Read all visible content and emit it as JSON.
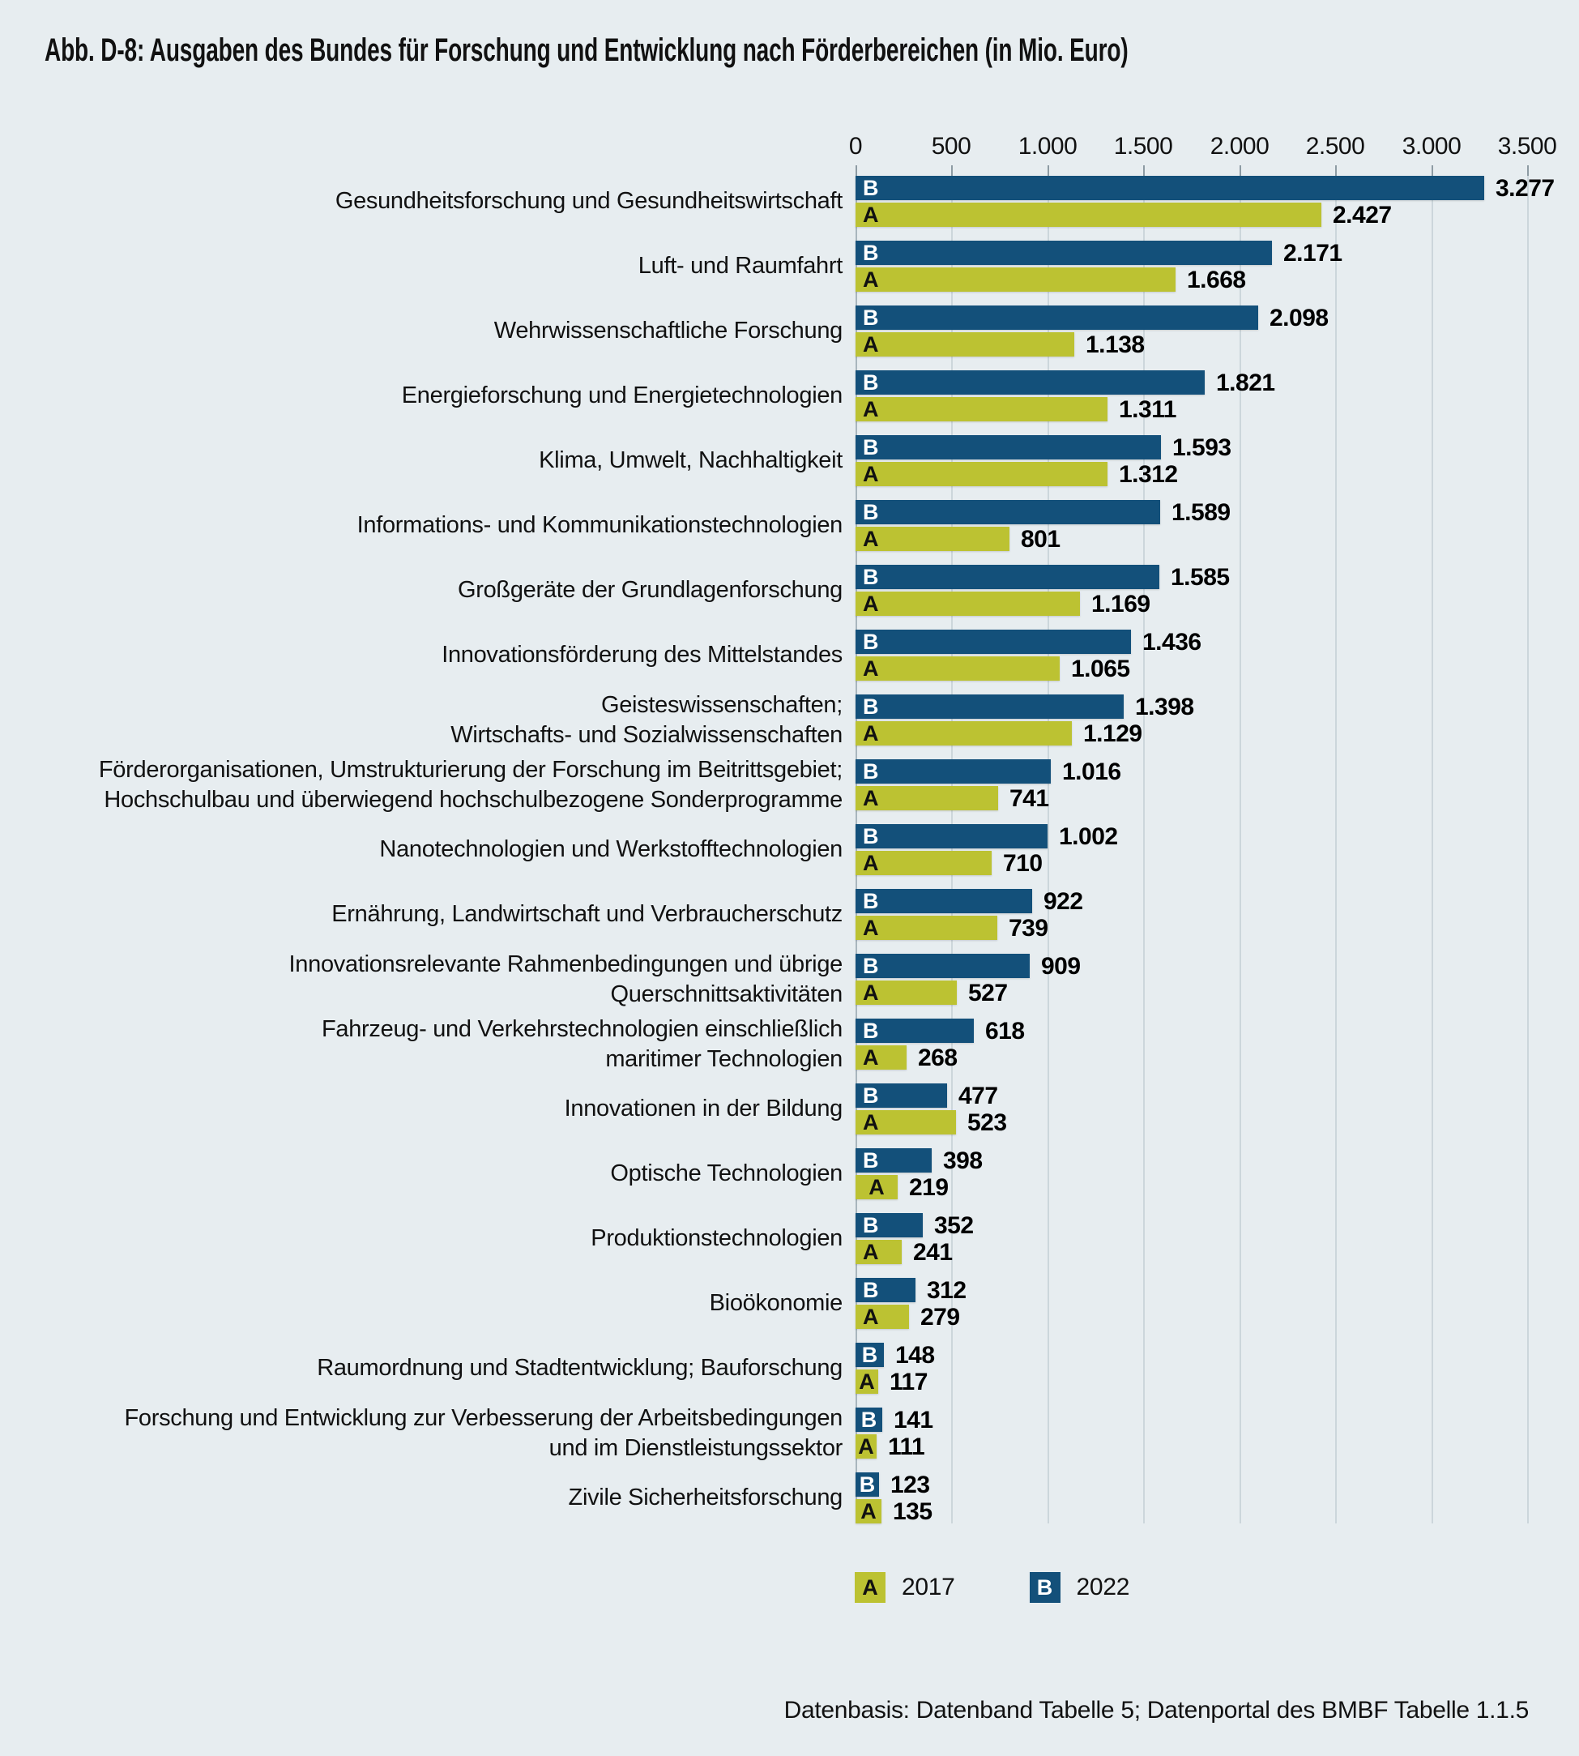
{
  "title": "Abb. D-8: Ausgaben des Bundes für Forschung und Entwicklung nach Förderbereichen (in Mio. Euro)",
  "source_note": "Datenbasis: Datenband Tabelle 5; Datenportal des BMBF Tabelle 1.1.5",
  "colors": {
    "background": "#e7edf0",
    "grid": "#ccd6db",
    "axis_line": "#a9b6bd",
    "series_2022_blue": "#13507a",
    "series_2017_green": "#bcc232",
    "text": "#111111"
  },
  "chart_data": {
    "type": "bar",
    "orientation": "horizontal",
    "unit": "Mio. Euro",
    "grid": true,
    "x_axis": {
      "min": 0,
      "max": 3500,
      "tick_values": [
        0,
        500,
        1000,
        1500,
        2000,
        2500,
        3000,
        3500
      ],
      "tick_labels": [
        "0",
        "500",
        "1.000",
        "1.500",
        "2.000",
        "2.500",
        "3.000",
        "3.500"
      ]
    },
    "legend": {
      "position": "bottom",
      "items": [
        {
          "key": "A",
          "label": "2017",
          "color": "#bcc232",
          "letter_color": "#111111"
        },
        {
          "key": "B",
          "label": "2022",
          "color": "#13507a",
          "letter_color": "#ffffff"
        }
      ]
    },
    "categories": [
      [
        "Gesundheitsforschung und Gesundheitswirtschaft"
      ],
      [
        "Luft- und Raumfahrt"
      ],
      [
        "Wehrwissenschaftliche Forschung"
      ],
      [
        "Energieforschung und Energietechnologien"
      ],
      [
        "Klima, Umwelt, Nachhaltigkeit"
      ],
      [
        "Informations- und Kommunikationstechnologien"
      ],
      [
        "Großgeräte der Grundlagenforschung"
      ],
      [
        "Innovationsförderung des Mittelstandes"
      ],
      [
        "Geisteswissenschaften;",
        "Wirtschafts- und Sozialwissenschaften"
      ],
      [
        "Förderorganisationen, Umstrukturierung der Forschung im Beitrittsgebiet;",
        "Hochschulbau und überwiegend hochschulbezogene Sonderprogramme"
      ],
      [
        "Nanotechnologien und Werkstofftechnologien"
      ],
      [
        "Ernährung, Landwirtschaft und Verbraucherschutz"
      ],
      [
        "Innovationsrelevante Rahmenbedingungen und übrige",
        "Querschnittsaktivitäten"
      ],
      [
        "Fahrzeug- und Verkehrstechnologien einschließlich",
        "maritimer Technologien"
      ],
      [
        "Innovationen in der Bildung"
      ],
      [
        "Optische Technologien"
      ],
      [
        "Produktionstechnologien"
      ],
      [
        "Bioökonomie"
      ],
      [
        "Raumordnung und Stadtentwicklung; Bauforschung"
      ],
      [
        "Forschung und Entwicklung zur Verbesserung der Arbeitsbedingungen",
        "und im Dienstleistungssektor"
      ],
      [
        "Zivile Sicherheitsforschung"
      ]
    ],
    "series": [
      {
        "key": "B",
        "name": "2022",
        "color": "#13507a",
        "letter_color": "#ffffff",
        "values": [
          3277,
          2171,
          2098,
          1821,
          1593,
          1589,
          1585,
          1436,
          1398,
          1016,
          1002,
          922,
          909,
          618,
          477,
          398,
          352,
          312,
          148,
          141,
          123
        ],
        "value_labels": [
          "3.277",
          "2.171",
          "2.098",
          "1.821",
          "1.593",
          "1.589",
          "1.585",
          "1.436",
          "1.398",
          "1.016",
          "1.002",
          "922",
          "909",
          "618",
          "477",
          "398",
          "352",
          "312",
          "148",
          "141",
          "123"
        ]
      },
      {
        "key": "A",
        "name": "2017",
        "color": "#bcc232",
        "letter_color": "#111111",
        "values": [
          2427,
          1668,
          1138,
          1311,
          1312,
          801,
          1169,
          1065,
          1129,
          741,
          710,
          739,
          527,
          268,
          523,
          219,
          241,
          279,
          117,
          111,
          135
        ],
        "value_labels": [
          "2.427",
          "1.668",
          "1.138",
          "1.311",
          "1.312",
          "801",
          "1.169",
          "1.065",
          "1.129",
          "741",
          "710",
          "739",
          "527",
          "268",
          "523",
          "219",
          "241",
          "279",
          "117",
          "111",
          "135"
        ]
      }
    ]
  }
}
